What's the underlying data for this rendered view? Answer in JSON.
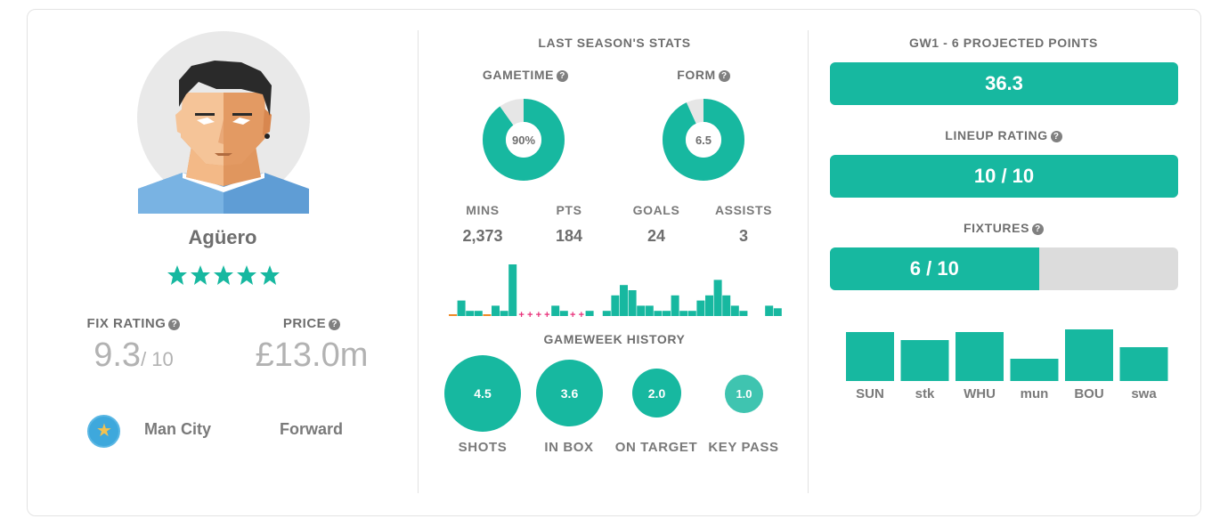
{
  "player": {
    "name": "Agüero",
    "stars": 5,
    "fix_rating_label": "FIX RATING",
    "fix_rating_value": "9.3",
    "fix_rating_max": "/ 10",
    "price_label": "PRICE",
    "price_value": "£13.0m",
    "club": "Man City",
    "position": "Forward"
  },
  "last_season": {
    "title": "LAST SEASON'S STATS",
    "gametime_label": "GAMETIME",
    "gametime_value": "90%",
    "gametime_fraction": 0.9,
    "form_label": "FORM",
    "form_value": "6.5",
    "form_fraction": 0.93,
    "stats": [
      {
        "label": "MINS",
        "value": "2,373"
      },
      {
        "label": "PTS",
        "value": "184"
      },
      {
        "label": "GOALS",
        "value": "24"
      },
      {
        "label": "ASSISTS",
        "value": "3"
      }
    ]
  },
  "gameweek_history": {
    "title": "GAMEWEEK HISTORY",
    "marks": [
      "orange",
      "bar",
      "bar",
      "bar",
      "orange",
      "bar",
      "bar",
      "bar",
      "plus",
      "plus",
      "plus",
      "plus",
      "bar",
      "bar",
      "plus",
      "plus",
      "bar",
      "gap",
      "bar",
      "bar",
      "bar",
      "bar",
      "bar",
      "bar",
      "bar",
      "bar",
      "bar",
      "bar",
      "bar",
      "bar",
      "bar",
      "bar",
      "bar",
      "bar",
      "bar",
      "bar",
      "gap",
      "bar",
      "bar"
    ],
    "values": [
      0,
      3,
      1,
      1,
      0,
      2,
      1,
      10,
      0,
      0,
      0,
      0,
      2,
      1,
      0,
      0,
      1,
      0,
      1,
      4,
      6,
      5,
      2,
      2,
      1,
      1,
      4,
      1,
      1,
      3,
      4,
      7,
      4,
      2,
      1,
      0,
      0,
      2,
      1.5
    ],
    "bubbles": [
      {
        "label": "SHOTS",
        "value": "4.5"
      },
      {
        "label": "IN BOX",
        "value": "3.6"
      },
      {
        "label": "ON TARGET",
        "value": "2.0"
      },
      {
        "label": "KEY PASS",
        "value": "1.0"
      }
    ]
  },
  "projection": {
    "title": "GW1 - 6 PROJECTED POINTS",
    "points": "36.3",
    "lineup_label": "LINEUP RATING",
    "lineup_value": "10 / 10",
    "lineup_fraction": 1.0,
    "fixtures_label": "FIXTURES",
    "fixtures_value": "6 / 10",
    "fixtures_fraction": 0.6,
    "fixtures": [
      {
        "team": "SUN",
        "strength": 55
      },
      {
        "team": "stk",
        "strength": 46
      },
      {
        "team": "WHU",
        "strength": 55
      },
      {
        "team": "mun",
        "strength": 25
      },
      {
        "team": "BOU",
        "strength": 58
      },
      {
        "team": "swa",
        "strength": 38
      }
    ]
  },
  "colors": {
    "accent": "#17b8a0",
    "track": "#dcdcdc",
    "label": "#7a7a7a",
    "muted": "#b2b2b2",
    "plus": "#e8317a",
    "orange": "#f08a28"
  }
}
